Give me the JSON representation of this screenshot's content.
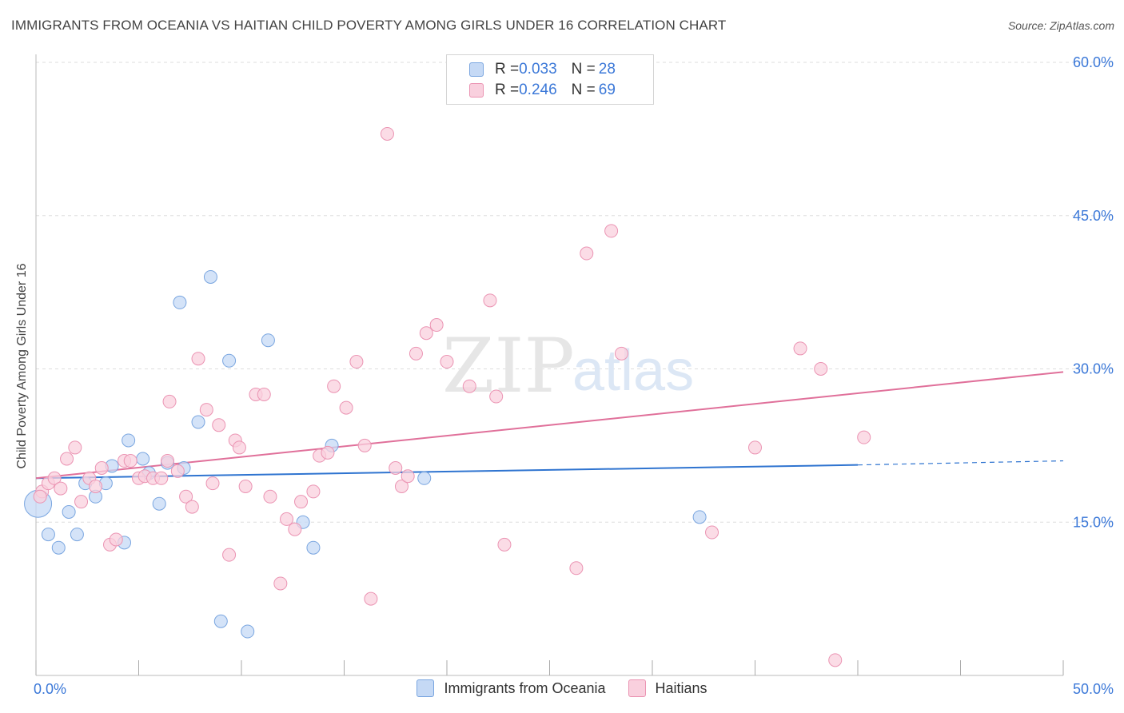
{
  "title": "IMMIGRANTS FROM OCEANIA VS HAITIAN CHILD POVERTY AMONG GIRLS UNDER 16 CORRELATION CHART",
  "source": "Source: ZipAtlas.com",
  "watermark": {
    "zip": "ZIP",
    "atlas": "atlas"
  },
  "legend": {
    "rows": [
      {
        "r_label": "R = ",
        "r_value": "0.033",
        "n_label": "N = ",
        "n_value": "28"
      },
      {
        "r_label": "R = ",
        "r_value": "0.246",
        "n_label": "N = ",
        "n_value": "69"
      }
    ]
  },
  "colors": {
    "blue_fill": "#c5d9f5",
    "blue_stroke": "#7aa6e0",
    "blue_line": "#2f74d0",
    "pink_fill": "#f9d0de",
    "pink_stroke": "#eb94b3",
    "pink_line": "#e0709a",
    "tick_label": "#3b78d8",
    "grid": "#dddddd"
  },
  "chart_data": {
    "type": "scatter",
    "title": "IMMIGRANTS FROM OCEANIA VS HAITIAN CHILD POVERTY AMONG GIRLS UNDER 16 CORRELATION CHART",
    "xlabel": "",
    "ylabel": "Child Poverty Among Girls Under 16",
    "xlim": [
      0,
      50
    ],
    "ylim": [
      0,
      60
    ],
    "x_tick_labels": [
      "0.0%",
      "50.0%"
    ],
    "y_ticks": [
      15,
      30,
      45,
      60
    ],
    "y_tick_labels": [
      "15.0%",
      "30.0%",
      "45.0%",
      "60.0%"
    ],
    "series": [
      {
        "name": "Immigrants from Oceania",
        "r": 0.033,
        "n": 28,
        "trend": {
          "x0": 0,
          "y0": 19.3,
          "x1": 40,
          "y1": 20.6,
          "dash_to": 50,
          "dash_y": 21.0
        },
        "points": [
          [
            0.1,
            16.8
          ],
          [
            0.6,
            13.8
          ],
          [
            1.1,
            12.5
          ],
          [
            1.6,
            16.0
          ],
          [
            2.0,
            13.8
          ],
          [
            2.4,
            18.8
          ],
          [
            2.9,
            17.5
          ],
          [
            3.4,
            18.8
          ],
          [
            3.7,
            20.5
          ],
          [
            4.3,
            13.0
          ],
          [
            4.5,
            23.0
          ],
          [
            5.2,
            21.2
          ],
          [
            5.5,
            19.8
          ],
          [
            6.0,
            16.8
          ],
          [
            6.4,
            20.8
          ],
          [
            7.0,
            36.5
          ],
          [
            7.2,
            20.3
          ],
          [
            7.9,
            24.8
          ],
          [
            8.5,
            39.0
          ],
          [
            9.0,
            5.3
          ],
          [
            9.4,
            30.8
          ],
          [
            10.3,
            4.3
          ],
          [
            11.3,
            32.8
          ],
          [
            13.0,
            15.0
          ],
          [
            13.5,
            12.5
          ],
          [
            14.4,
            22.5
          ],
          [
            18.9,
            19.3
          ],
          [
            32.3,
            15.5
          ]
        ]
      },
      {
        "name": "Haitians",
        "r": 0.246,
        "n": 69,
        "trend": {
          "x0": 0,
          "y0": 19.3,
          "x1": 50,
          "y1": 29.7
        },
        "points": [
          [
            0.3,
            18.0
          ],
          [
            0.6,
            18.8
          ],
          [
            0.9,
            19.3
          ],
          [
            1.2,
            18.3
          ],
          [
            1.5,
            21.2
          ],
          [
            1.9,
            22.3
          ],
          [
            2.2,
            17.0
          ],
          [
            2.6,
            19.3
          ],
          [
            2.9,
            18.5
          ],
          [
            3.2,
            20.3
          ],
          [
            3.6,
            12.8
          ],
          [
            3.9,
            13.3
          ],
          [
            4.3,
            21.0
          ],
          [
            4.6,
            21.0
          ],
          [
            5.0,
            19.3
          ],
          [
            5.3,
            19.5
          ],
          [
            5.7,
            19.3
          ],
          [
            6.1,
            19.3
          ],
          [
            6.4,
            21.0
          ],
          [
            6.5,
            26.8
          ],
          [
            6.9,
            20.0
          ],
          [
            7.3,
            17.5
          ],
          [
            7.6,
            16.5
          ],
          [
            7.9,
            31.0
          ],
          [
            8.3,
            26.0
          ],
          [
            8.6,
            18.8
          ],
          [
            8.9,
            24.5
          ],
          [
            9.4,
            11.8
          ],
          [
            9.7,
            23.0
          ],
          [
            9.9,
            22.3
          ],
          [
            10.2,
            18.5
          ],
          [
            10.7,
            27.5
          ],
          [
            11.1,
            27.5
          ],
          [
            11.4,
            17.5
          ],
          [
            11.9,
            9.0
          ],
          [
            12.2,
            15.3
          ],
          [
            12.6,
            14.3
          ],
          [
            12.9,
            17.0
          ],
          [
            13.5,
            18.0
          ],
          [
            13.8,
            21.5
          ],
          [
            14.2,
            21.8
          ],
          [
            14.5,
            28.3
          ],
          [
            15.1,
            26.2
          ],
          [
            15.6,
            30.7
          ],
          [
            16.0,
            22.5
          ],
          [
            16.3,
            7.5
          ],
          [
            17.1,
            53.0
          ],
          [
            17.5,
            20.3
          ],
          [
            17.8,
            18.5
          ],
          [
            18.1,
            19.5
          ],
          [
            18.5,
            31.5
          ],
          [
            19.0,
            33.5
          ],
          [
            19.5,
            34.3
          ],
          [
            20.0,
            30.7
          ],
          [
            21.1,
            28.3
          ],
          [
            22.1,
            36.7
          ],
          [
            22.4,
            27.3
          ],
          [
            22.8,
            12.8
          ],
          [
            26.3,
            10.5
          ],
          [
            26.8,
            41.3
          ],
          [
            28.0,
            43.5
          ],
          [
            28.5,
            31.5
          ],
          [
            32.9,
            14.0
          ],
          [
            35.0,
            22.3
          ],
          [
            37.2,
            32.0
          ],
          [
            38.2,
            30.0
          ],
          [
            38.9,
            1.5
          ],
          [
            40.3,
            23.3
          ],
          [
            0.2,
            17.5
          ]
        ]
      }
    ]
  }
}
